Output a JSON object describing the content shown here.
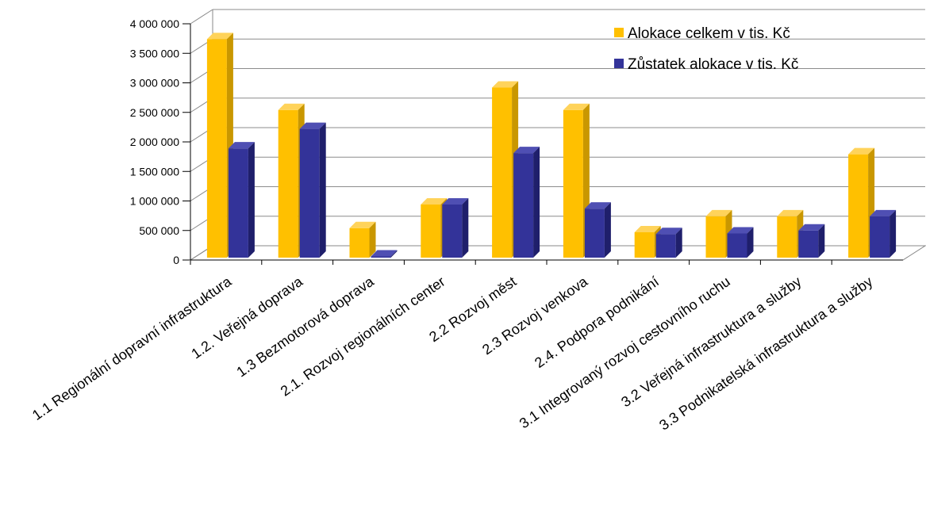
{
  "chart_data": {
    "type": "bar",
    "categories": [
      "1.1 Regionální dopravní infrastruktura",
      "1.2. Veřejná doprava",
      "1.3 Bezmotorová doprava",
      "2.1. Rozvoj regionálních center",
      "2.2 Rozvoj měst",
      "2.3 Rozvoj venkova",
      "2.4. Podpora podnikání",
      "3.1 Integrovaný rozvoj cestovního ruchu",
      "3.2 Veřejná infrastruktura a služby",
      "3.3 Podnikatelská infrastruktura a služby"
    ],
    "series": [
      {
        "name": "Alokace celkem v tis. Kč",
        "color": "#FFC000",
        "values": [
          3700000,
          2500000,
          500000,
          900000,
          2880000,
          2500000,
          430000,
          700000,
          700000,
          1750000
        ]
      },
      {
        "name": "Zůstatek alokace v tis. Kč",
        "color": "#333399",
        "values": [
          1850000,
          2180000,
          20000,
          900000,
          1770000,
          830000,
          400000,
          410000,
          460000,
          700000
        ]
      }
    ],
    "yticks": [
      "0",
      "500 000",
      "1 000 000",
      "1 500 000",
      "2 000 000",
      "2 500 000",
      "3 000 000",
      "3 500 000",
      "4 000 000"
    ],
    "ylim": [
      0,
      4000000
    ],
    "grid": true,
    "legend": "top-right",
    "title": "",
    "xlabel": "",
    "ylabel": ""
  }
}
